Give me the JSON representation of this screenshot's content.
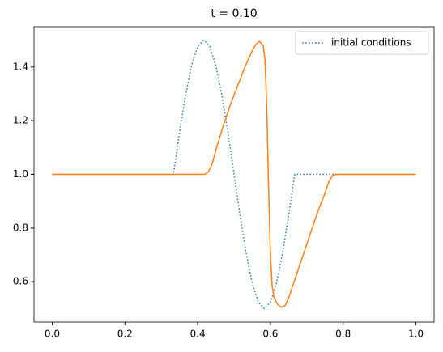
{
  "chart_data": {
    "type": "line",
    "title": "t =  0.10",
    "series": [
      {
        "name": "initial conditions",
        "color": "#1f77b4",
        "style": "dotted",
        "x": [
          0,
          0.3333,
          0.35,
          0.3667,
          0.3833,
          0.4,
          0.4167,
          0.4333,
          0.45,
          0.4667,
          0.4833,
          0.5,
          0.5167,
          0.5333,
          0.55,
          0.5667,
          0.5833,
          0.6,
          0.6167,
          0.6333,
          0.65,
          0.6667,
          1
        ],
        "values": [
          1,
          1,
          1.155,
          1.294,
          1.405,
          1.476,
          1.5,
          1.476,
          1.405,
          1.294,
          1.155,
          1,
          0.845,
          0.706,
          0.595,
          0.524,
          0.5,
          0.524,
          0.595,
          0.706,
          0.845,
          1,
          1
        ]
      },
      {
        "color": "#ff7f0e",
        "style": "solid",
        "x": [
          0,
          0.42,
          0.43,
          0.44,
          0.45,
          0.47,
          0.49,
          0.51,
          0.53,
          0.55,
          0.56,
          0.57,
          0.58,
          0.585,
          0.59,
          0.595,
          0.6,
          0.605,
          0.61,
          0.62,
          0.63,
          0.64,
          0.65,
          0.67,
          0.69,
          0.71,
          0.73,
          0.75,
          0.76,
          0.77,
          0.78,
          1
        ],
        "values": [
          1,
          1,
          1.01,
          1.04,
          1.09,
          1.18,
          1.26,
          1.33,
          1.4,
          1.46,
          1.485,
          1.495,
          1.48,
          1.43,
          1.25,
          0.95,
          0.7,
          0.58,
          0.54,
          0.515,
          0.505,
          0.51,
          0.54,
          0.62,
          0.7,
          0.78,
          0.86,
          0.93,
          0.97,
          0.995,
          1,
          1
        ]
      }
    ],
    "xlim": [
      -0.05,
      1.05
    ],
    "ylim": [
      0.45,
      1.55
    ],
    "xticks": [
      {
        "value": 0,
        "label": "0.0"
      },
      0.2,
      0.4,
      0.6,
      0.8,
      {
        "value": 1,
        "label": "1.0"
      }
    ],
    "yticks": [
      0.6,
      0.8,
      {
        "value": 1,
        "label": "1.0"
      },
      1.2,
      1.4
    ],
    "legend": "upper right"
  }
}
